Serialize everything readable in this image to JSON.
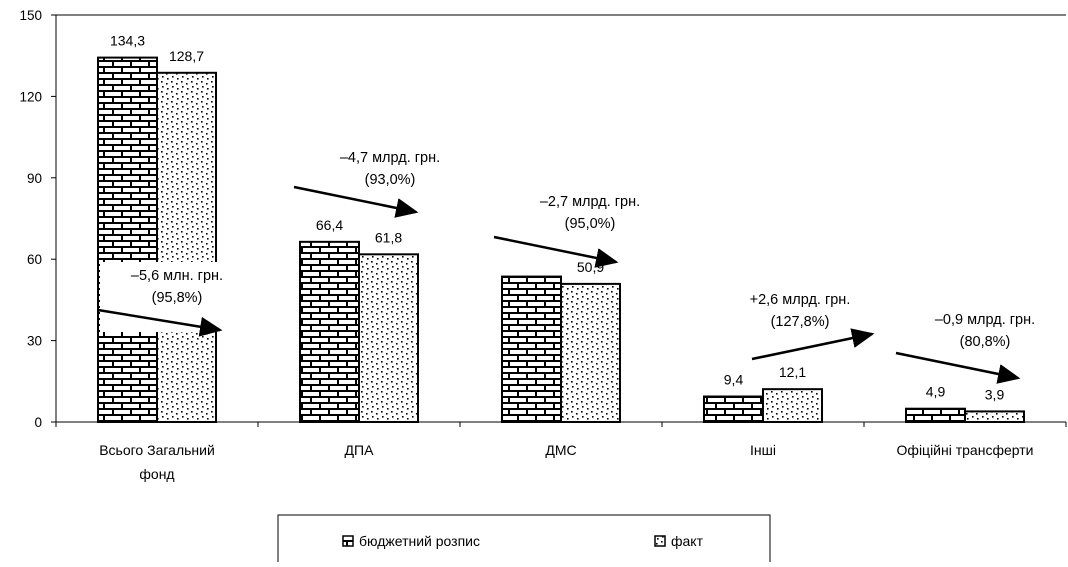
{
  "chart_data": {
    "type": "bar",
    "categories": [
      [
        "Всього Загальний",
        "фонд"
      ],
      [
        "ДПА"
      ],
      [
        "ДМС"
      ],
      [
        "Інші"
      ],
      [
        "Офіційні трансферти"
      ]
    ],
    "series": [
      {
        "name": "бюджетний розпис",
        "pattern": "brick",
        "values": [
          134.3,
          66.4,
          53.6,
          9.4,
          4.9
        ],
        "labels": [
          "134,3",
          "66,4",
          "",
          "9,4",
          "4,9"
        ]
      },
      {
        "name": "факт",
        "pattern": "dots",
        "values": [
          128.7,
          61.8,
          50.9,
          12.1,
          3.9
        ],
        "labels": [
          "128,7",
          "61,8",
          "50,9",
          "12,1",
          "3,9"
        ]
      }
    ],
    "ylim": [
      0,
      150
    ],
    "yticks": [
      0,
      30,
      60,
      90,
      120,
      150
    ],
    "grid": false,
    "legend_position": "bottom",
    "annotations": [
      {
        "lines": [
          "–5,6 млн. грн.",
          "(95,8%)"
        ],
        "category": 0
      },
      {
        "lines": [
          "–4,7 млрд. грн.",
          "(93,0%)"
        ],
        "category": 1
      },
      {
        "lines": [
          "–2,7 млрд. грн.",
          "(95,0%)"
        ],
        "category": 2
      },
      {
        "lines": [
          "+2,6 млрд. грн.",
          "(127,8%)"
        ],
        "category": 3
      },
      {
        "lines": [
          "–0,9 млрд. грн.",
          "(80,8%)"
        ],
        "category": 4
      }
    ]
  }
}
